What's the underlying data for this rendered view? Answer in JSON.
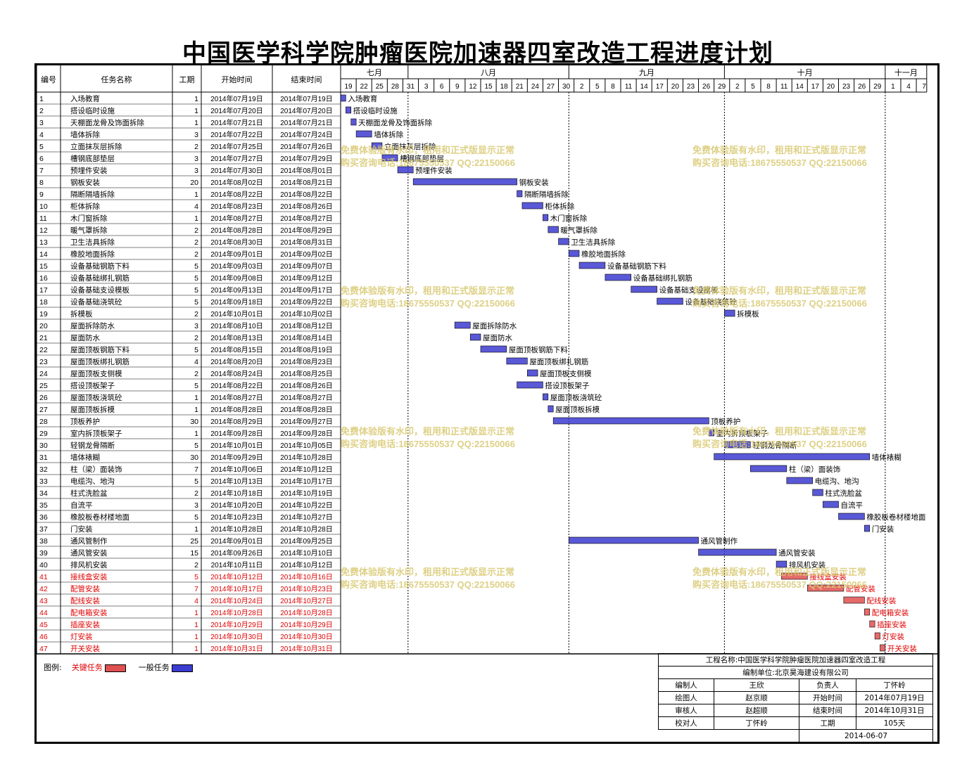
{
  "title": "中国医学科学院肿瘤医院加速器四室改造工程进度计划",
  "columns": {
    "id": "编号",
    "name": "任务名称",
    "dur": "工期",
    "start": "开始时间",
    "end": "结束时间"
  },
  "colors": {
    "normal": "#3c3cd0",
    "critical": "#e05050",
    "watermark": "#d8c870",
    "label_red": "#e00000"
  },
  "months": [
    "七月",
    "八月",
    "九月",
    "十月",
    "十一月"
  ],
  "day_ticks": [
    "19",
    "22",
    "25",
    "28",
    "31",
    "3",
    "6",
    "9",
    "12",
    "15",
    "18",
    "21",
    "24",
    "27",
    "30",
    "2",
    "5",
    "8",
    "11",
    "14",
    "17",
    "20",
    "23",
    "26",
    "29",
    "2",
    "5",
    "8",
    "11",
    "14",
    "17",
    "20",
    "23",
    "26",
    "29",
    "1",
    "4",
    "7"
  ],
  "watermark": {
    "line1": "免费体验版有水印，租用和正式版显示正常",
    "line2": "购买咨询电话:18675550537 QQ:22150066"
  },
  "legend": {
    "label": "图例:",
    "critical": "关键任务",
    "normal": "一般任务"
  },
  "info": {
    "project_label": "工程名称:",
    "project": "中国医学科学院肿瘤医院加速器四室改造工程",
    "unit_label": "编制单位:",
    "unit": "北京昊海建设有限公司",
    "rows": [
      [
        "编制人",
        "王欣",
        "负责人",
        "丁怀岭"
      ],
      [
        "绘图人",
        "赵京顺",
        "开始时间",
        "2014年07月19日"
      ],
      [
        "审核人",
        "赵超顺",
        "结束时间",
        "2014年10月31日"
      ],
      [
        "校对人",
        "丁怀岭",
        "工期",
        "105天"
      ]
    ],
    "date": "2014-06-07"
  },
  "chart_data": {
    "type": "gantt",
    "x_axis": {
      "start": "2014-07-19",
      "end": "2014-11-08",
      "unit": "day"
    },
    "tasks": [
      {
        "id": "1",
        "name": "入场教育",
        "dur": "1",
        "start": "2014年07月19日",
        "end": "2014年07月19日",
        "critical": false
      },
      {
        "id": "2",
        "name": "搭设临时设施",
        "dur": "1",
        "start": "2014年07月20日",
        "end": "2014年07月20日",
        "critical": false
      },
      {
        "id": "3",
        "name": "天棚面龙骨及饰面拆除",
        "dur": "1",
        "start": "2014年07月21日",
        "end": "2014年07月21日",
        "critical": false
      },
      {
        "id": "4",
        "name": "墙体拆除",
        "dur": "3",
        "start": "2014年07月22日",
        "end": "2014年07月24日",
        "critical": false
      },
      {
        "id": "5",
        "name": "立面抹灰层拆除",
        "dur": "2",
        "start": "2014年07月25日",
        "end": "2014年07月26日",
        "critical": false
      },
      {
        "id": "6",
        "name": "槽钢底部垫层",
        "dur": "3",
        "start": "2014年07月27日",
        "end": "2014年07月29日",
        "critical": false
      },
      {
        "id": "7",
        "name": "预埋件安装",
        "dur": "3",
        "start": "2014年07月30日",
        "end": "2014年08月01日",
        "critical": false
      },
      {
        "id": "8",
        "name": "钢板安装",
        "dur": "20",
        "start": "2014年08月02日",
        "end": "2014年08月21日",
        "critical": false
      },
      {
        "id": "9",
        "name": "隔断隔墙拆除",
        "dur": "1",
        "start": "2014年08月22日",
        "end": "2014年08月22日",
        "critical": false
      },
      {
        "id": "10",
        "name": "柜体拆除",
        "dur": "4",
        "start": "2014年08月23日",
        "end": "2014年08月26日",
        "critical": false
      },
      {
        "id": "11",
        "name": "木门窗拆除",
        "dur": "1",
        "start": "2014年08月27日",
        "end": "2014年08月27日",
        "critical": false
      },
      {
        "id": "12",
        "name": "暖气罩拆除",
        "dur": "2",
        "start": "2014年08月28日",
        "end": "2014年08月29日",
        "critical": false
      },
      {
        "id": "13",
        "name": "卫生洁具拆除",
        "dur": "2",
        "start": "2014年08月30日",
        "end": "2014年08月31日",
        "critical": false
      },
      {
        "id": "14",
        "name": "橡胶地面拆除",
        "dur": "2",
        "start": "2014年09月01日",
        "end": "2014年09月02日",
        "critical": false
      },
      {
        "id": "15",
        "name": "设备基础钢筋下料",
        "dur": "5",
        "start": "2014年09月03日",
        "end": "2014年09月07日",
        "critical": false
      },
      {
        "id": "16",
        "name": "设备基础绑扎钢筋",
        "dur": "5",
        "start": "2014年09月08日",
        "end": "2014年09月12日",
        "critical": false
      },
      {
        "id": "17",
        "name": "设备基础支设模板",
        "dur": "5",
        "start": "2014年09月13日",
        "end": "2014年09月17日",
        "critical": false
      },
      {
        "id": "18",
        "name": "设备基础浇筑砼",
        "dur": "5",
        "start": "2014年09月18日",
        "end": "2014年09月22日",
        "critical": false
      },
      {
        "id": "19",
        "name": "拆模板",
        "dur": "2",
        "start": "2014年10月01日",
        "end": "2014年10月02日",
        "critical": false
      },
      {
        "id": "20",
        "name": "屋面拆除防水",
        "dur": "3",
        "start": "2014年08月10日",
        "end": "2014年08月12日",
        "critical": false
      },
      {
        "id": "21",
        "name": "屋面防水",
        "dur": "2",
        "start": "2014年08月13日",
        "end": "2014年08月14日",
        "critical": false
      },
      {
        "id": "22",
        "name": "屋面顶板钢筋下料",
        "dur": "5",
        "start": "2014年08月15日",
        "end": "2014年08月19日",
        "critical": false
      },
      {
        "id": "23",
        "name": "屋面顶板绑扎钢筋",
        "dur": "4",
        "start": "2014年08月20日",
        "end": "2014年08月23日",
        "critical": false
      },
      {
        "id": "24",
        "name": "屋面顶板支侧模",
        "dur": "2",
        "start": "2014年08月24日",
        "end": "2014年08月25日",
        "critical": false
      },
      {
        "id": "25",
        "name": "搭设顶板架子",
        "dur": "5",
        "start": "2014年08月22日",
        "end": "2014年08月26日",
        "critical": false
      },
      {
        "id": "26",
        "name": "屋面顶板浇筑砼",
        "dur": "1",
        "start": "2014年08月27日",
        "end": "2014年08月27日",
        "critical": false
      },
      {
        "id": "27",
        "name": "屋面顶板拆模",
        "dur": "1",
        "start": "2014年08月28日",
        "end": "2014年08月28日",
        "critical": false
      },
      {
        "id": "28",
        "name": "顶板养护",
        "dur": "30",
        "start": "2014年08月29日",
        "end": "2014年09月27日",
        "critical": false
      },
      {
        "id": "29",
        "name": "室内拆顶板架子",
        "dur": "1",
        "start": "2014年09月28日",
        "end": "2014年09月28日",
        "critical": false
      },
      {
        "id": "30",
        "name": "轻钢龙骨隔断",
        "dur": "5",
        "start": "2014年10月01日",
        "end": "2014年10月05日",
        "critical": false
      },
      {
        "id": "31",
        "name": "墙体裱糊",
        "dur": "30",
        "start": "2014年09月29日",
        "end": "2014年10月28日",
        "critical": false
      },
      {
        "id": "32",
        "name": "柱（梁）面装饰",
        "dur": "7",
        "start": "2014年10月06日",
        "end": "2014年10月12日",
        "critical": false
      },
      {
        "id": "33",
        "name": "电缆沟、地沟",
        "dur": "5",
        "start": "2014年10月13日",
        "end": "2014年10月17日",
        "critical": false
      },
      {
        "id": "34",
        "name": "柱式洗脸盆",
        "dur": "2",
        "start": "2014年10月18日",
        "end": "2014年10月19日",
        "critical": false
      },
      {
        "id": "35",
        "name": "自流平",
        "dur": "3",
        "start": "2014年10月20日",
        "end": "2014年10月22日",
        "critical": false
      },
      {
        "id": "36",
        "name": "橡胶板卷材楼地面",
        "dur": "5",
        "start": "2014年10月23日",
        "end": "2014年10月27日",
        "critical": false
      },
      {
        "id": "37",
        "name": "门安装",
        "dur": "1",
        "start": "2014年10月28日",
        "end": "2014年10月28日",
        "critical": false
      },
      {
        "id": "38",
        "name": "通风管制作",
        "dur": "25",
        "start": "2014年09月01日",
        "end": "2014年09月25日",
        "critical": false
      },
      {
        "id": "39",
        "name": "通风管安装",
        "dur": "15",
        "start": "2014年09月26日",
        "end": "2014年10月10日",
        "critical": false
      },
      {
        "id": "40",
        "name": "排风机安装",
        "dur": "2",
        "start": "2014年10月11日",
        "end": "2014年10月12日",
        "critical": false
      },
      {
        "id": "41",
        "name": "接线盒安装",
        "dur": "5",
        "start": "2014年10月12日",
        "end": "2014年10月16日",
        "critical": true
      },
      {
        "id": "42",
        "name": "配管安装",
        "dur": "7",
        "start": "2014年10月17日",
        "end": "2014年10月23日",
        "critical": true
      },
      {
        "id": "43",
        "name": "配线安装",
        "dur": "4",
        "start": "2014年10月24日",
        "end": "2014年10月27日",
        "critical": true
      },
      {
        "id": "44",
        "name": "配电箱安装",
        "dur": "1",
        "start": "2014年10月28日",
        "end": "2014年10月28日",
        "critical": true
      },
      {
        "id": "45",
        "name": "插座安装",
        "dur": "1",
        "start": "2014年10月29日",
        "end": "2014年10月29日",
        "critical": true
      },
      {
        "id": "46",
        "name": "灯安装",
        "dur": "1",
        "start": "2014年10月30日",
        "end": "2014年10月30日",
        "critical": true
      },
      {
        "id": "47",
        "name": "开关安装",
        "dur": "1",
        "start": "2014年10月31日",
        "end": "2014年10月31日",
        "critical": true
      }
    ]
  }
}
